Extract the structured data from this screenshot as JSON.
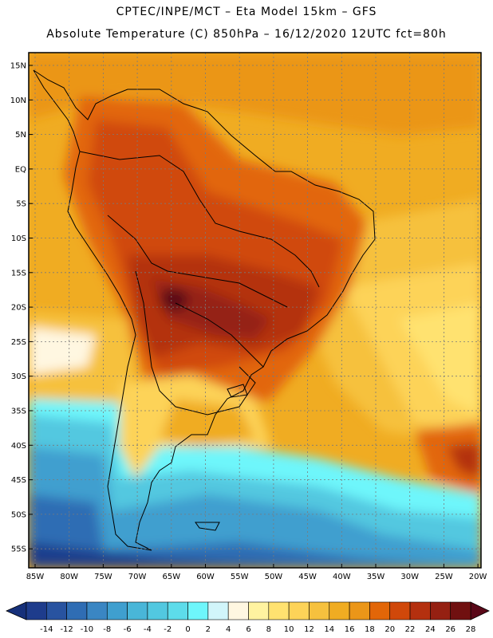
{
  "title": {
    "line1": "CPTEC/INPE/MCT –  Eta Model 15km – GFS",
    "line2": "Absolute Temperature (C) 850hPa – 16/12/2020 12UTC fct=80h"
  },
  "lat_labels": [
    "15N",
    "10N",
    "5N",
    "EQ",
    "5S",
    "10S",
    "15S",
    "20S",
    "25S",
    "30S",
    "35S",
    "40S",
    "45S",
    "50S",
    "55S"
  ],
  "lon_labels": [
    "85W",
    "80W",
    "75W",
    "70W",
    "65W",
    "60W",
    "55W",
    "50W",
    "45W",
    "40W",
    "35W",
    "30W",
    "25W",
    "20W"
  ],
  "colorbar": {
    "labels": [
      "-14",
      "-12",
      "-10",
      "-8",
      "-6",
      "-4",
      "-2",
      "0",
      "2",
      "4",
      "6",
      "8",
      "10",
      "12",
      "14",
      "16",
      "18",
      "20",
      "22",
      "24",
      "26",
      "28"
    ],
    "colors": [
      "#1e3c8c",
      "#2853a0",
      "#2f6db4",
      "#3a86c3",
      "#3f9fcf",
      "#49b6d8",
      "#52c8e0",
      "#5ddcea",
      "#6ef6fb",
      "#d1f5fa",
      "#fff7e1",
      "#fff3a0",
      "#ffe270",
      "#fdd358",
      "#f6c13e",
      "#f0ac22",
      "#eb9618",
      "#e26608",
      "#d0480a",
      "#b4300f",
      "#952012",
      "#701010"
    ],
    "low_color": "#16307a",
    "high_color": "#5a0818"
  }
}
